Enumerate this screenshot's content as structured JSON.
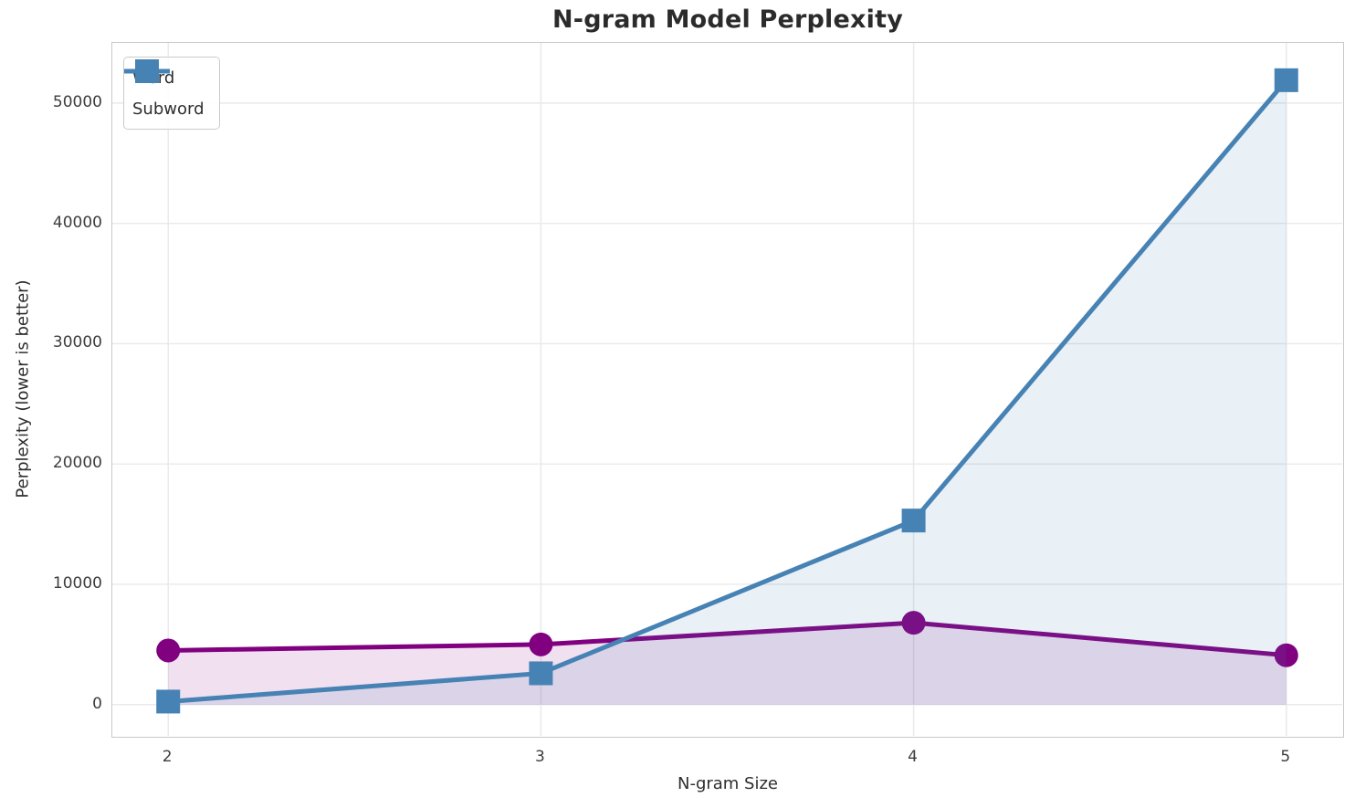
{
  "chart_data": {
    "type": "line",
    "title": "N-gram Model Perplexity",
    "xlabel": "N-gram Size",
    "ylabel": "Perplexity (lower is better)",
    "x": [
      2,
      3,
      4,
      5
    ],
    "series": [
      {
        "name": "Word",
        "color": "#800080",
        "marker": "circle",
        "values": [
          4500,
          5000,
          6800,
          4100
        ]
      },
      {
        "name": "Subword",
        "color": "#4682B4",
        "marker": "square",
        "values": [
          250,
          2600,
          15300,
          51900
        ]
      }
    ],
    "fill_to_zero": true,
    "fill_alpha": 0.12,
    "line_width": 5,
    "xlim": [
      1.85,
      5.15
    ],
    "ylim": [
      -2600,
      55000
    ],
    "xticks": {
      "values": [
        2,
        3,
        4,
        5
      ],
      "labels": [
        "2",
        "3",
        "4",
        "5"
      ]
    },
    "yticks": {
      "values": [
        0,
        10000,
        20000,
        30000,
        40000,
        50000
      ],
      "labels": [
        "0",
        "10000",
        "20000",
        "30000",
        "40000",
        "50000"
      ]
    },
    "grid": true,
    "legend_position": "upper-left"
  },
  "style": {
    "grid_color": "#e9e9e9",
    "spine_color": "#c9c9c9",
    "tick_color": "#3d3d3d",
    "title_color": "#2b2b2b",
    "background": "#ffffff"
  }
}
